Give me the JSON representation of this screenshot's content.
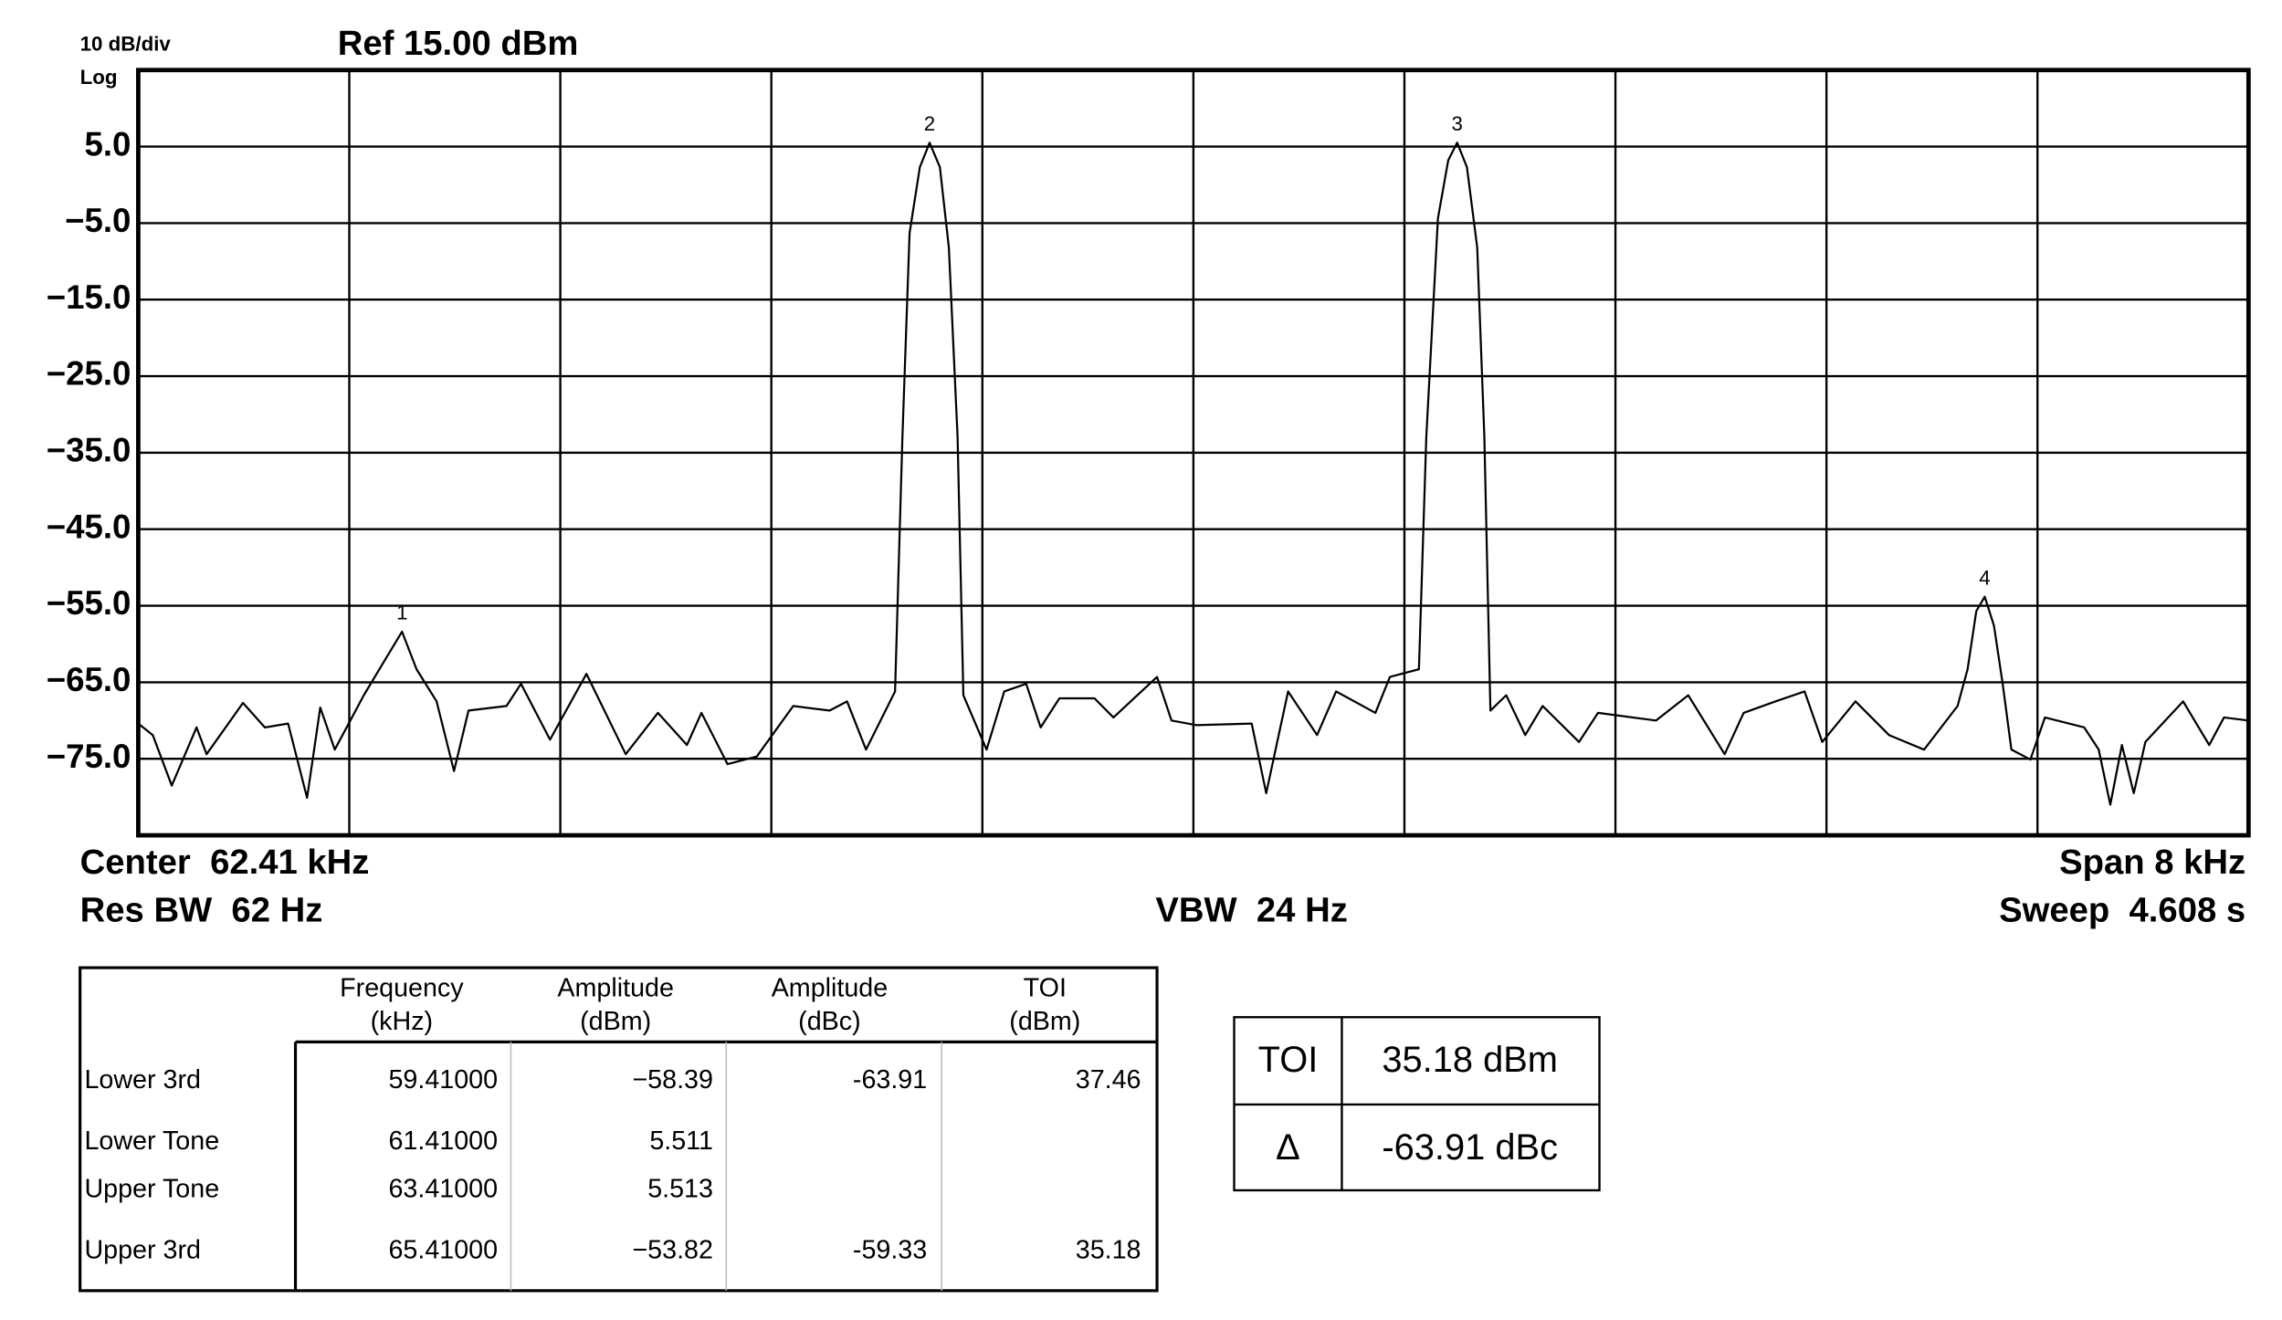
{
  "chart_data": {
    "type": "line",
    "scale_label": "10 dB/div",
    "scale_type": "Log",
    "ref_label": "Ref 15.00 dBm",
    "annotations": {
      "center": "Center  62.41 kHz",
      "res_bw": "Res BW  62 Hz",
      "vbw": "VBW  24 Hz",
      "span": "Span 8 kHz",
      "sweep": "Sweep  4.608 s"
    },
    "xlim": [
      58.41,
      66.41
    ],
    "ylim": [
      -85,
      15
    ],
    "yticks": [
      {
        "value": 5,
        "label": "5.0"
      },
      {
        "value": -5,
        "label": "−5.0"
      },
      {
        "value": -15,
        "label": "−15.0"
      },
      {
        "value": -25,
        "label": "−25.0"
      },
      {
        "value": -35,
        "label": "−35.0"
      },
      {
        "value": -45,
        "label": "−45.0"
      },
      {
        "value": -55,
        "label": "−55.0"
      },
      {
        "value": -65,
        "label": "−65.0"
      },
      {
        "value": -75,
        "label": "−75.0"
      }
    ],
    "grid": true,
    "color": "#000000",
    "x": [
      58.41,
      58.465,
      58.537,
      58.631,
      58.669,
      58.807,
      58.89,
      58.978,
      59.05,
      59.1,
      59.155,
      59.265,
      59.331,
      59.41,
      59.465,
      59.541,
      59.607,
      59.662,
      59.806,
      59.861,
      59.971,
      60.109,
      60.258,
      60.38,
      60.49,
      60.545,
      60.644,
      60.755,
      60.893,
      61.031,
      61.097,
      61.169,
      61.279,
      61.307,
      61.334,
      61.373,
      61.41,
      61.449,
      61.483,
      61.516,
      61.538,
      61.626,
      61.693,
      61.776,
      61.831,
      61.902,
      62.035,
      62.107,
      62.272,
      62.327,
      62.421,
      62.631,
      62.686,
      62.769,
      62.879,
      62.951,
      63.1,
      63.155,
      63.265,
      63.293,
      63.337,
      63.376,
      63.41,
      63.447,
      63.486,
      63.513,
      63.536,
      63.596,
      63.668,
      63.734,
      63.872,
      63.944,
      64.164,
      64.286,
      64.424,
      64.496,
      64.617,
      64.727,
      64.794,
      64.92,
      65.047,
      65.18,
      65.307,
      65.345,
      65.378,
      65.41,
      65.445,
      65.478,
      65.511,
      65.583,
      65.638,
      65.787,
      65.842,
      65.886,
      65.93,
      65.975,
      66.019,
      66.162,
      66.261,
      66.317,
      66.41
    ],
    "values": [
      -70.4,
      -71.9,
      -78.5,
      -70.9,
      -74.4,
      -67.7,
      -70.9,
      -70.4,
      -80.1,
      -68.3,
      -73.8,
      -66.7,
      -62.9,
      -58.39,
      -63.3,
      -67.5,
      -76.6,
      -68.7,
      -68.1,
      -65.2,
      -72.5,
      -63.9,
      -74.4,
      -69.0,
      -73.2,
      -69.0,
      -75.7,
      -74.7,
      -68.1,
      -68.7,
      -67.5,
      -73.8,
      -66.2,
      -32.9,
      -6.3,
      2.3,
      5.511,
      2.3,
      -8.2,
      -32.9,
      -66.7,
      -73.8,
      -66.2,
      -65.2,
      -70.9,
      -67.1,
      -67.1,
      -69.6,
      -64.3,
      -70.0,
      -70.6,
      -70.4,
      -79.5,
      -66.2,
      -71.9,
      -66.2,
      -69.0,
      -64.3,
      -63.3,
      -32.9,
      -4.4,
      3.2,
      5.513,
      2.3,
      -8.2,
      -32.9,
      -68.7,
      -66.7,
      -71.9,
      -68.1,
      -72.8,
      -69.0,
      -70.0,
      -66.7,
      -74.4,
      -69.0,
      -67.5,
      -66.2,
      -72.8,
      -67.5,
      -71.9,
      -73.8,
      -68.1,
      -63.3,
      -55.7,
      -53.82,
      -57.6,
      -65.2,
      -73.8,
      -75.1,
      -69.6,
      -70.9,
      -73.8,
      -81.0,
      -73.2,
      -79.5,
      -72.8,
      -67.5,
      -73.2,
      -69.6,
      -70.0
    ],
    "markers": [
      {
        "label": "1",
        "x": 59.41,
        "y": -58.39
      },
      {
        "label": "2",
        "x": 61.41,
        "y": 5.511
      },
      {
        "label": "3",
        "x": 63.41,
        "y": 5.513
      },
      {
        "label": "4",
        "x": 65.41,
        "y": -53.82
      }
    ]
  },
  "table": {
    "headers": [
      [
        "Frequency",
        "(kHz)"
      ],
      [
        "Amplitude",
        "(dBm)"
      ],
      [
        "Amplitude",
        "(dBc)"
      ],
      [
        "TOI",
        "(dBm)"
      ]
    ],
    "rows": [
      [
        "Lower 3rd",
        "59.41000",
        "−58.39",
        "-63.91",
        "37.46"
      ],
      [
        "Lower Tone",
        "61.41000",
        "5.511"
      ],
      [
        "Upper Tone",
        "63.41000",
        "5.513"
      ],
      [
        "Upper 3rd",
        "65.41000",
        "−53.82",
        "-59.33",
        "35.18"
      ]
    ]
  },
  "toi_box": {
    "rows": [
      [
        "TOI",
        "35.18 dBm"
      ],
      [
        "Δ",
        "-63.91 dBc"
      ]
    ]
  }
}
